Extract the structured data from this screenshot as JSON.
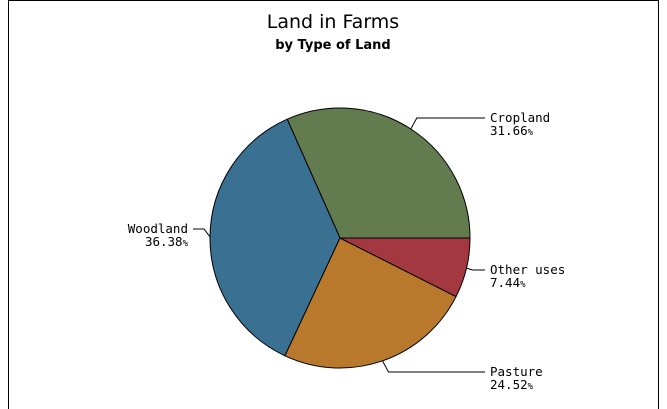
{
  "chart_data": {
    "type": "pie",
    "title": "Land in Farms",
    "subtitle": "by Type of Land",
    "slices": [
      {
        "label": "Cropland",
        "value": 31.66,
        "color": "#637c4f"
      },
      {
        "label": "Other uses",
        "value": 7.44,
        "color": "#a43841"
      },
      {
        "label": "Pasture",
        "value": 24.52,
        "color": "#b8792c"
      },
      {
        "label": "Woodland",
        "value": 36.38,
        "color": "#3a7192"
      }
    ],
    "value_suffix": "%",
    "start_angle_deg": 0,
    "direction": "clockwise"
  }
}
